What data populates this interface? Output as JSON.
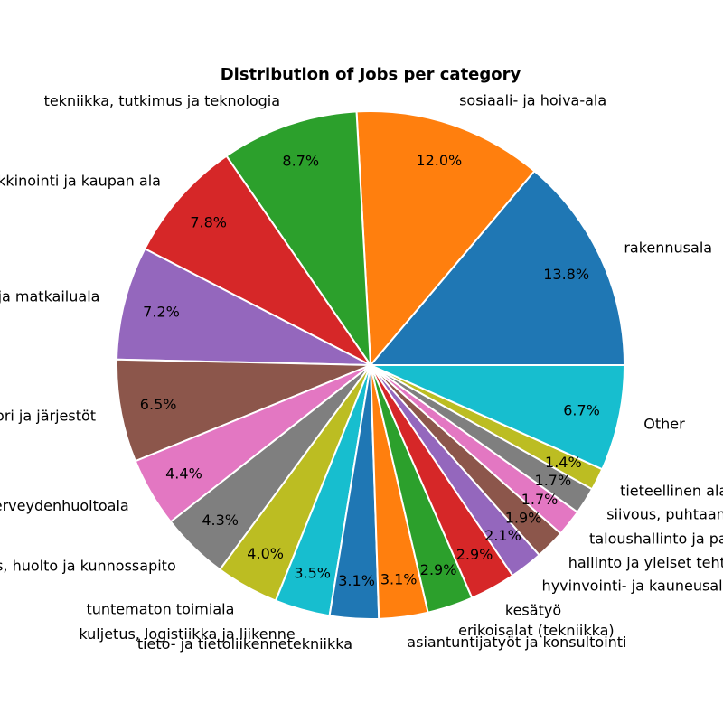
{
  "chart_data": {
    "type": "pie",
    "title": "Distribution of Jobs per category",
    "start_angle_deg": 0,
    "direction": "counterclockwise",
    "slices": [
      {
        "label": "rakennusala",
        "value": 13.8,
        "pct_label": "13.8%",
        "color": "#1f77b4"
      },
      {
        "label": "sosiaali- ja hoiva-ala",
        "value": 12.0,
        "pct_label": "12.0%",
        "color": "#ff7f0e"
      },
      {
        "label": "tekniikka, tutkimus ja teknologia",
        "value": 8.7,
        "pct_label": "8.7%",
        "color": "#2ca02c"
      },
      {
        "label": "myynti-, markkinointi ja kaupan ala",
        "value": 7.8,
        "pct_label": "7.8%",
        "color": "#d62728"
      },
      {
        "label": "hotelli-, ravintola- ja matkailuala",
        "value": 7.2,
        "pct_label": "7.2%",
        "color": "#9467bd"
      },
      {
        "label": "julkinen sektori ja järjestöt",
        "value": 6.5,
        "pct_label": "6.5%",
        "color": "#8c564b"
      },
      {
        "label": "terveydenhuoltoala",
        "value": 4.4,
        "pct_label": "4.4%",
        "color": "#e377c2"
      },
      {
        "label": "asennus, huolto ja kunnossapito",
        "value": 4.3,
        "pct_label": "4.3%",
        "color": "#7f7f7f"
      },
      {
        "label": "tuntematon toimiala",
        "value": 4.0,
        "pct_label": "4.0%",
        "color": "#bcbd22"
      },
      {
        "label": "kuljetus, logistiikka ja liikenne",
        "value": 3.5,
        "pct_label": "3.5%",
        "color": "#17becf"
      },
      {
        "label": "tieto- ja tietoliikennetekniikka",
        "value": 3.1,
        "pct_label": "3.1%",
        "color": "#1f77b4"
      },
      {
        "label": "asiantuntijatyöt ja konsultointi",
        "value": 3.1,
        "pct_label": "3.1%",
        "color": "#ff7f0e"
      },
      {
        "label": "erikoisalat (tekniikka)",
        "value": 2.9,
        "pct_label": "2.9%",
        "color": "#2ca02c"
      },
      {
        "label": "kesätyö",
        "value": 2.9,
        "pct_label": "2.9%",
        "color": "#d62728"
      },
      {
        "label": "hyvinvointi- ja kauneusala",
        "value": 2.1,
        "pct_label": "2.1%",
        "color": "#9467bd"
      },
      {
        "label": "hallinto ja yleiset tehtävät",
        "value": 1.9,
        "pct_label": "1.9%",
        "color": "#8c564b"
      },
      {
        "label": "taloushallinto ja pankkiala",
        "value": 1.7,
        "pct_label": "1.7%",
        "color": "#e377c2"
      },
      {
        "label": "siivous, puhtaanapito ja kiinteistöala",
        "value": 1.7,
        "pct_label": "1.7%",
        "color": "#7f7f7f"
      },
      {
        "label": "tieteellinen ala",
        "value": 1.4,
        "pct_label": "1.4%",
        "color": "#bcbd22"
      },
      {
        "label": "Other",
        "value": 6.7,
        "pct_label": "6.7%",
        "color": "#17becf"
      }
    ]
  }
}
